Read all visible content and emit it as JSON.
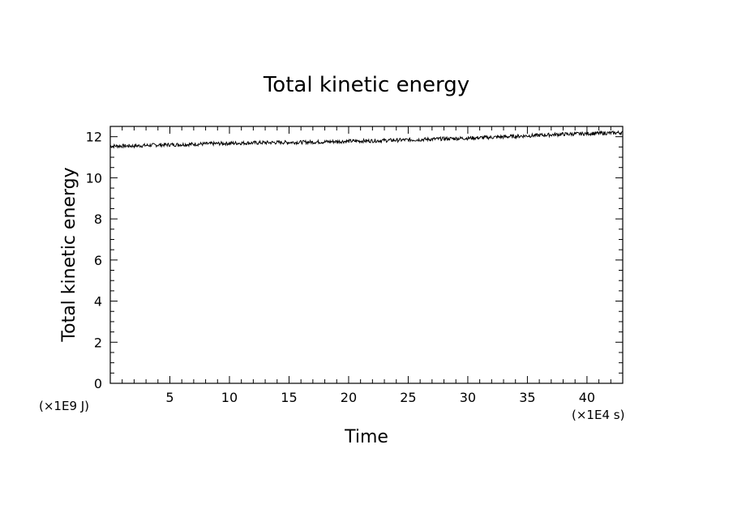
{
  "chart_data": {
    "type": "line",
    "title": "Total kinetic energy",
    "xlabel": "Time",
    "ylabel": "Total kinetic energy",
    "x_unit": "(×1E4 s)",
    "y_unit": "(×1E9 J)",
    "xlim": [
      0,
      43
    ],
    "ylim": [
      0,
      12.5
    ],
    "x_ticks": [
      5,
      10,
      15,
      20,
      25,
      30,
      35,
      40
    ],
    "y_ticks": [
      0,
      2,
      4,
      6,
      8,
      10,
      12
    ],
    "grid": false,
    "series": [
      {
        "x": [
          0,
          2,
          4,
          6,
          8,
          10,
          12,
          14,
          16,
          18,
          20,
          22,
          24,
          26,
          28,
          30,
          32,
          34,
          36,
          38,
          40,
          42,
          43
        ],
        "y": [
          11.55,
          11.55,
          11.6,
          11.62,
          11.65,
          11.68,
          11.7,
          11.72,
          11.73,
          11.75,
          11.78,
          11.8,
          11.83,
          11.86,
          11.9,
          11.93,
          11.97,
          12.02,
          12.07,
          12.12,
          12.15,
          12.18,
          12.2
        ]
      }
    ]
  }
}
